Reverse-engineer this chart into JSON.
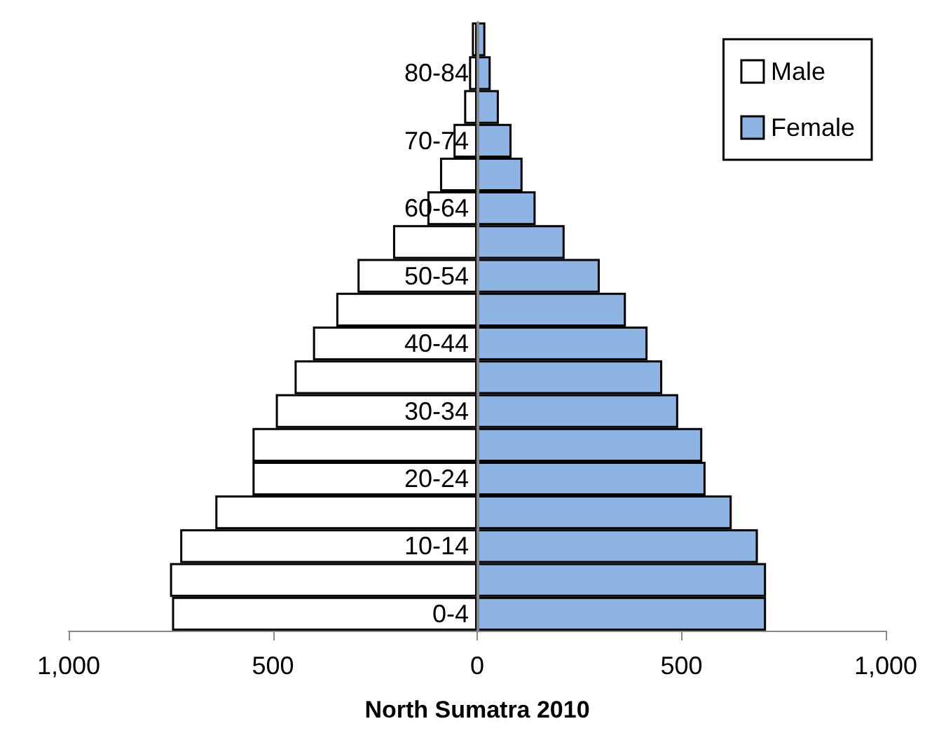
{
  "chart_data": {
    "type": "bar",
    "orientation": "horizontal",
    "xlabel": "North Sumatra 2010",
    "categories": [
      null,
      "80-84",
      null,
      "70-74",
      null,
      "60-64",
      null,
      "50-54",
      null,
      "40-44",
      null,
      "30-34",
      null,
      "20-24",
      null,
      "10-14",
      null,
      "0-4"
    ],
    "series": [
      {
        "name": "Male",
        "color": "#ffffff",
        "values": [
          -13,
          -20,
          -32,
          -58,
          -91,
          -122,
          -206,
          -293,
          -345,
          -402,
          -447,
          -493,
          -550,
          -550,
          -641,
          -727,
          -752,
          -747
        ]
      },
      {
        "name": "Female",
        "color": "#8eb4e3",
        "values": [
          20,
          33,
          53,
          84,
          111,
          143,
          214,
          300,
          364,
          417,
          453,
          492,
          551,
          559,
          623,
          687,
          707,
          707
        ]
      }
    ],
    "xlim": [
      -1000,
      1000
    ],
    "xticks": [
      {
        "value": -1000,
        "label": "1,000"
      },
      {
        "value": -500,
        "label": "500"
      },
      0,
      500,
      {
        "value": 1000,
        "label": "1,000"
      }
    ],
    "stacked": true,
    "grid": false,
    "legend": "top right"
  }
}
